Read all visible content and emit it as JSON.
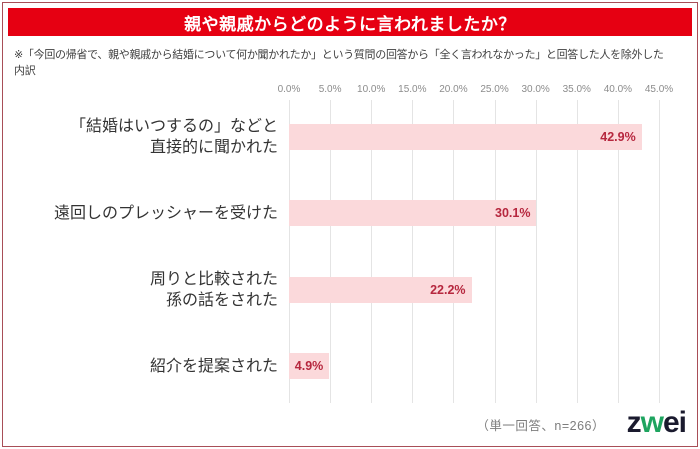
{
  "title": "親や親戚からどのように言われましたか？",
  "subtitle": "※「今回の帰省で、親や親戚から結婚について何か聞かれたか」という質問の回答から「全く言われなかった」と回答した人を除外した内訳",
  "chart_data": {
    "type": "bar",
    "orientation": "horizontal",
    "categories": [
      [
        "「結婚はいつするの」などと",
        "直接的に聞かれた"
      ],
      [
        "遠回しのプレッシャーを受けた"
      ],
      [
        "周りと比較された",
        "孫の話をされた"
      ],
      [
        "紹介を提案された"
      ]
    ],
    "values": [
      42.9,
      30.1,
      22.2,
      4.9
    ],
    "value_labels": [
      "42.9%",
      "30.1%",
      "22.2%",
      "4.9%"
    ],
    "x_ticks": [
      "0.0%",
      "5.0%",
      "10.0%",
      "15.0%",
      "20.0%",
      "25.0%",
      "30.0%",
      "35.0%",
      "40.0%",
      "45.0%"
    ],
    "xlim": [
      0,
      45
    ],
    "grid": true,
    "legend": "none",
    "bar_color": "#fbd9db",
    "value_label_color": "#b6273e"
  },
  "footer": {
    "note": "（単一回答、n=266）",
    "logo": {
      "z": "z",
      "w": "w",
      "ei": "ei"
    }
  },
  "colors": {
    "banner-red": "#e60012",
    "frame-red": "#a84e57",
    "bar-pink": "#fbd9db",
    "value-red": "#b6273e",
    "cat-text": "#333333",
    "subtitle-text": "#404040",
    "axis-text": "#8c8c8c",
    "grid-line": "#e4e4e4",
    "footer-gray": "#7d7d7d",
    "logo-navy": "#1a1a2e",
    "logo-green": "#1ea45f"
  }
}
